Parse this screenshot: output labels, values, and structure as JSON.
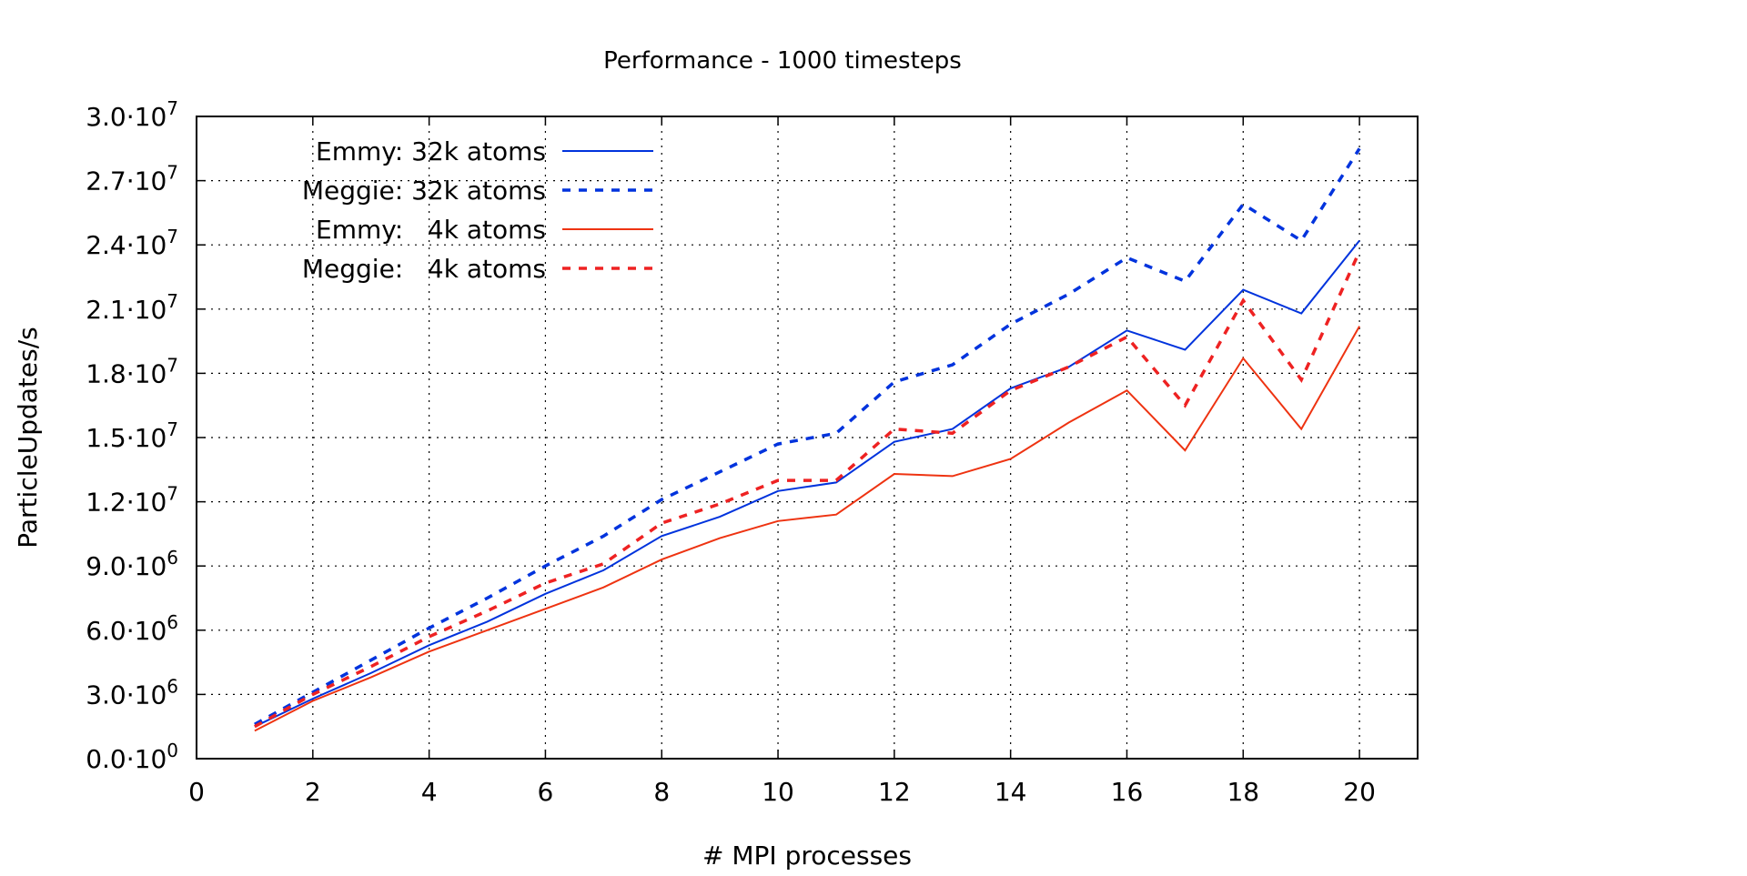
{
  "chart_data": {
    "type": "line",
    "title": "Performance - 1000 timesteps",
    "xlabel": "# MPI processes",
    "ylabel": "ParticleUpdates/s",
    "xlim": [
      0,
      21
    ],
    "ylim": [
      0,
      30000000
    ],
    "x_ticks": [
      0,
      2,
      4,
      6,
      8,
      10,
      12,
      14,
      16,
      18,
      20
    ],
    "y_ticks": [
      {
        "mantissa": "0.0",
        "exp": "0",
        "value": 0
      },
      {
        "mantissa": "3.0",
        "exp": "6",
        "value": 3000000
      },
      {
        "mantissa": "6.0",
        "exp": "6",
        "value": 6000000
      },
      {
        "mantissa": "9.0",
        "exp": "6",
        "value": 9000000
      },
      {
        "mantissa": "1.2",
        "exp": "7",
        "value": 12000000
      },
      {
        "mantissa": "1.5",
        "exp": "7",
        "value": 15000000
      },
      {
        "mantissa": "1.8",
        "exp": "7",
        "value": 18000000
      },
      {
        "mantissa": "2.1",
        "exp": "7",
        "value": 21000000
      },
      {
        "mantissa": "2.4",
        "exp": "7",
        "value": 24000000
      },
      {
        "mantissa": "2.7",
        "exp": "7",
        "value": 27000000
      },
      {
        "mantissa": "3.0",
        "exp": "7",
        "value": 30000000
      }
    ],
    "grid": true,
    "legend_position": "top-left",
    "x": [
      1,
      2,
      3,
      4,
      5,
      6,
      7,
      8,
      9,
      10,
      11,
      12,
      13,
      14,
      15,
      16,
      17,
      18,
      19,
      20
    ],
    "series": [
      {
        "name": "Emmy: 32k atoms",
        "color": "#0033dd",
        "style": "solid",
        "values": [
          1500000,
          2800000,
          4000000,
          5300000,
          6400000,
          7700000,
          8800000,
          10400000,
          11300000,
          12500000,
          12900000,
          14800000,
          15400000,
          17300000,
          18300000,
          20000000,
          19100000,
          21900000,
          20800000,
          24200000
        ]
      },
      {
        "name": "Meggie: 32k atoms",
        "color": "#0033dd",
        "style": "dashed",
        "values": [
          1600000,
          3100000,
          4600000,
          6100000,
          7500000,
          9000000,
          10400000,
          12100000,
          13400000,
          14700000,
          15200000,
          17600000,
          18400000,
          20300000,
          21700000,
          23400000,
          22300000,
          25900000,
          24200000,
          28500000
        ]
      },
      {
        "name": "Emmy:   4k atoms",
        "color": "#ee3311",
        "style": "solid",
        "values": [
          1300000,
          2700000,
          3800000,
          5000000,
          6000000,
          7000000,
          8000000,
          9300000,
          10300000,
          11100000,
          11400000,
          13300000,
          13200000,
          14000000,
          15700000,
          17200000,
          14400000,
          18700000,
          15400000,
          20200000
        ]
      },
      {
        "name": "Meggie:   4k atoms",
        "color": "#ee2222",
        "style": "dashed",
        "values": [
          1500000,
          3000000,
          4300000,
          5700000,
          6900000,
          8200000,
          9100000,
          11000000,
          11900000,
          13000000,
          13000000,
          15400000,
          15200000,
          17200000,
          18300000,
          19700000,
          16500000,
          21400000,
          17700000,
          23700000
        ]
      }
    ]
  }
}
